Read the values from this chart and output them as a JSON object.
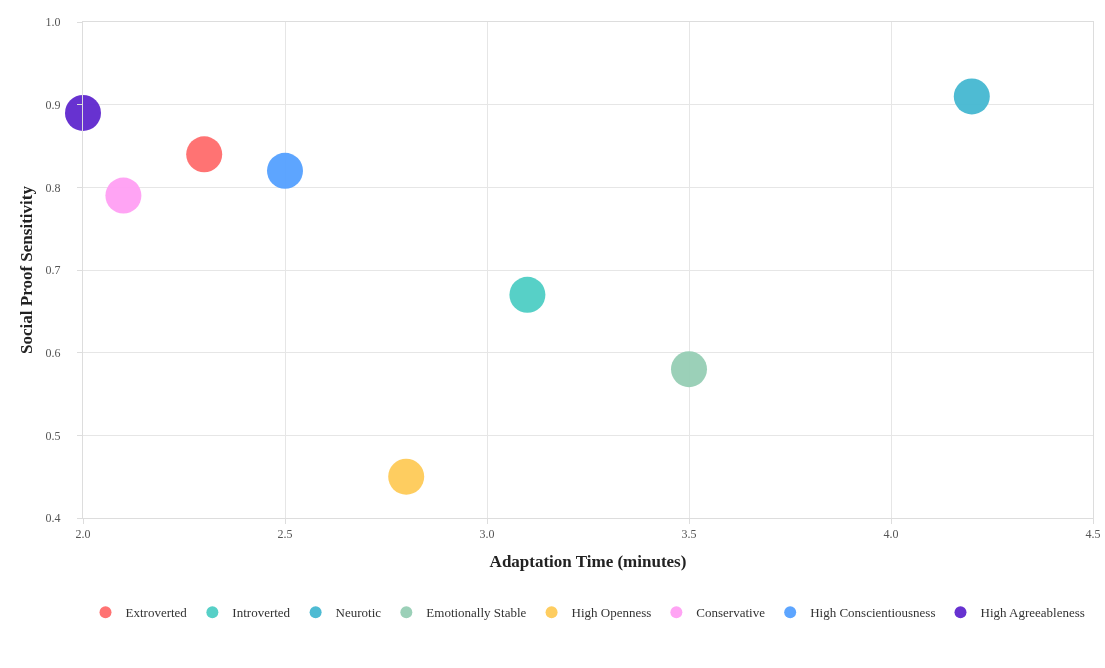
{
  "chart_data": {
    "type": "scatter",
    "xlabel": "Adaptation Time (minutes)",
    "ylabel": "Social Proof Sensitivity",
    "xlim": [
      2.0,
      4.5
    ],
    "xticks": [
      {
        "value": 2.0,
        "label": "2.0"
      },
      {
        "value": 2.5,
        "label": "2.5"
      },
      {
        "value": 3.0,
        "label": "3.0"
      },
      {
        "value": 3.5,
        "label": "3.5"
      },
      {
        "value": 4.0,
        "label": "4.0"
      },
      {
        "value": 4.5,
        "label": "4.5"
      }
    ],
    "ylim": [
      0.4,
      1.0
    ],
    "yticks": [
      0.4,
      0.5,
      0.6,
      0.7,
      0.8,
      0.9,
      {
        "value": 1.0,
        "label": "1.0"
      }
    ],
    "grid": true,
    "legend": "bottom",
    "marker": "circle",
    "series": [
      {
        "name": "Extroverted",
        "color": "#ff6b6b",
        "x": [
          2.3
        ],
        "values": [
          0.84
        ]
      },
      {
        "name": "Introverted",
        "color": "#4ecdc4",
        "x": [
          3.1
        ],
        "values": [
          0.67
        ]
      },
      {
        "name": "Neurotic",
        "color": "#45b7d1",
        "x": [
          4.2
        ],
        "values": [
          0.91
        ]
      },
      {
        "name": "Emotionally Stable",
        "color": "#96ceb4",
        "x": [
          3.5
        ],
        "values": [
          0.58
        ]
      },
      {
        "name": "High Openness",
        "color": "#feca57",
        "x": [
          2.8
        ],
        "values": [
          0.45
        ]
      },
      {
        "name": "Conservative",
        "color": "#ff9ff3",
        "x": [
          2.1
        ],
        "values": [
          0.79
        ]
      },
      {
        "name": "High Conscientiousness",
        "color": "#54a0ff",
        "x": [
          2.5
        ],
        "values": [
          0.82
        ]
      },
      {
        "name": "High Agreeableness",
        "color": "#5f27cd",
        "x": [
          2.0
        ],
        "values": [
          0.89
        ]
      }
    ]
  }
}
